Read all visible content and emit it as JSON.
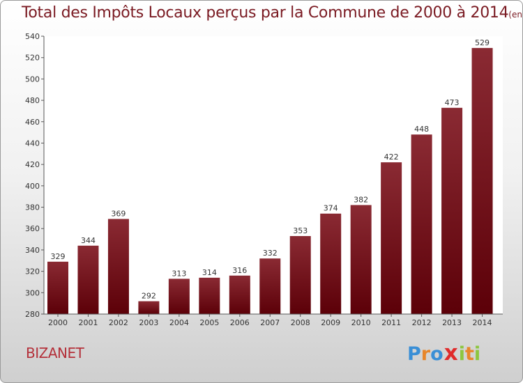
{
  "title": "Total des Impôts Locaux perçus par la Commune de 2000 à 2014",
  "title_unit": "(en milliers d'€)",
  "commune": "BIZANET",
  "logo": {
    "letters": [
      "P",
      "r",
      "o",
      "x",
      "i",
      "t",
      "i"
    ],
    "colors": [
      "#3a8fd6",
      "#e8862a",
      "#3a8fd6",
      "#e02b2b",
      "#8dc63f",
      "#e8862a",
      "#8dc63f"
    ]
  },
  "colors": {
    "bar_top": "#8a2a33",
    "bar_bottom": "#5c0008",
    "title": "#7a1a22",
    "commune": "#b4303a"
  },
  "chart_data": {
    "type": "bar",
    "title": "Total des Impôts Locaux perçus par la Commune de 2000 à 2014",
    "xlabel": "",
    "ylabel": "",
    "categories": [
      "2000",
      "2001",
      "2002",
      "2003",
      "2004",
      "2005",
      "2006",
      "2007",
      "2008",
      "2009",
      "2010",
      "2011",
      "2012",
      "2013",
      "2014"
    ],
    "values": [
      329,
      344,
      369,
      292,
      313,
      314,
      316,
      332,
      353,
      374,
      382,
      422,
      448,
      473,
      529
    ],
    "ylim": [
      280,
      540
    ],
    "yticks": [
      280,
      300,
      320,
      340,
      360,
      380,
      400,
      420,
      440,
      460,
      480,
      500,
      520,
      540
    ],
    "grid": false
  }
}
